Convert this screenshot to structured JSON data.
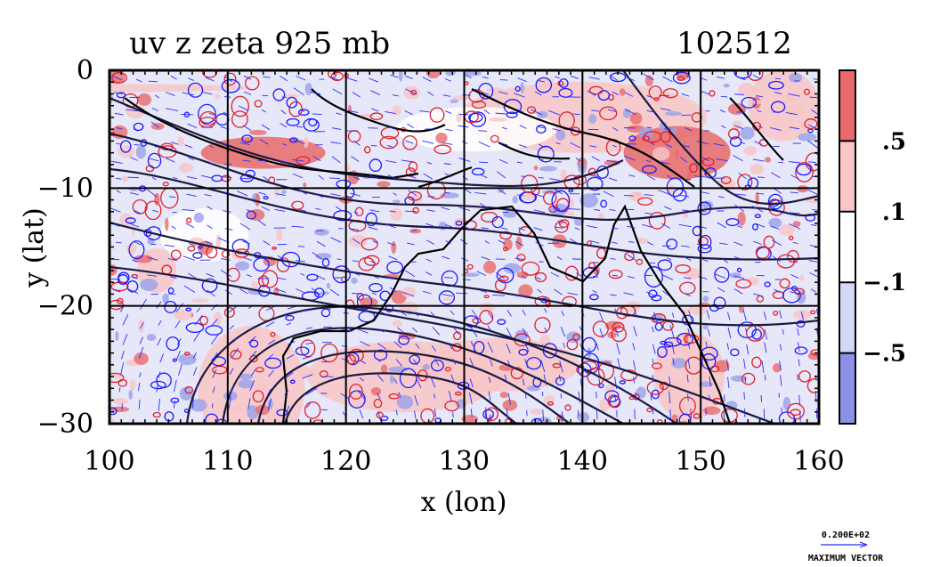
{
  "chart_data": {
    "type": "heatmap",
    "title": "uv z zeta 925 mb",
    "timestamp": "102512",
    "xlabel": "x (lon)",
    "ylabel": "y (lat)",
    "xlim": [
      100,
      160
    ],
    "ylim": [
      -30,
      0
    ],
    "x_ticks": [
      100,
      110,
      120,
      130,
      140,
      150,
      160
    ],
    "y_ticks": [
      0,
      -10,
      -20,
      -30
    ],
    "x_tick_labels": [
      "100",
      "110",
      "120",
      "130",
      "140",
      "150",
      "160"
    ],
    "y_tick_labels": [
      "0",
      "−10",
      "−20",
      "−30"
    ],
    "grid": true,
    "colorbar": {
      "levels": [
        {
          "label": "",
          "color": "#e86a6a"
        },
        {
          "label": ".5",
          "color": "#f8c6c6"
        },
        {
          "label": ".1",
          "color": "#ffffff"
        },
        {
          "label": "−.1",
          "color": "#d5d7f5"
        },
        {
          "label": "−.5",
          "color": "#8c90e6"
        }
      ],
      "labels": [
        ".5",
        ".1",
        "−.1",
        "−.5"
      ]
    },
    "vector_legend": {
      "value": "0.200E+02",
      "label": "MAXIMUM VECTOR"
    },
    "colors": {
      "positive_contour": "#e0202a",
      "negative_contour": "#1a1aff",
      "geopotential_contour": "#1a1a40",
      "vector": "#2b2bff",
      "coast": "#000000"
    }
  }
}
